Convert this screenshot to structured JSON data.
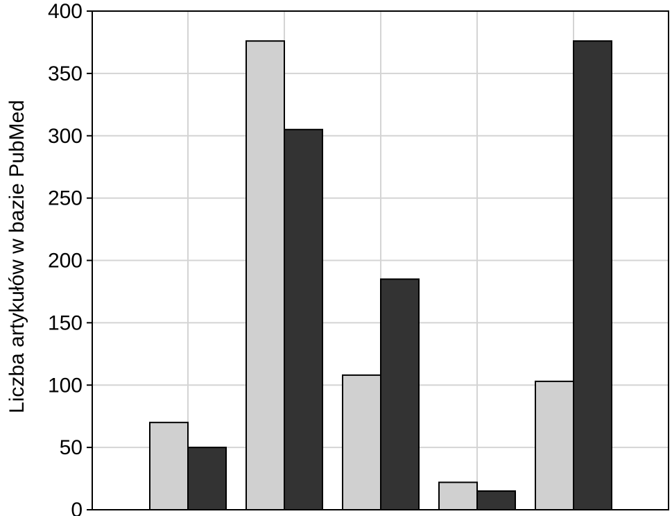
{
  "chart_data": {
    "type": "bar",
    "title": "",
    "xlabel": "",
    "ylabel": "Liczba artykułów w bazie PubMed",
    "ylim": [
      0,
      400
    ],
    "yticks": [
      0,
      50,
      100,
      150,
      200,
      250,
      300,
      350,
      400
    ],
    "categories": [
      "",
      "",
      "",
      "",
      ""
    ],
    "series": [
      {
        "color": "#d0d0d0",
        "values": [
          70,
          376,
          108,
          22,
          103
        ]
      },
      {
        "color": "#333333",
        "values": [
          50,
          305,
          185,
          15,
          376
        ]
      }
    ],
    "grid": true,
    "legend": "none"
  }
}
